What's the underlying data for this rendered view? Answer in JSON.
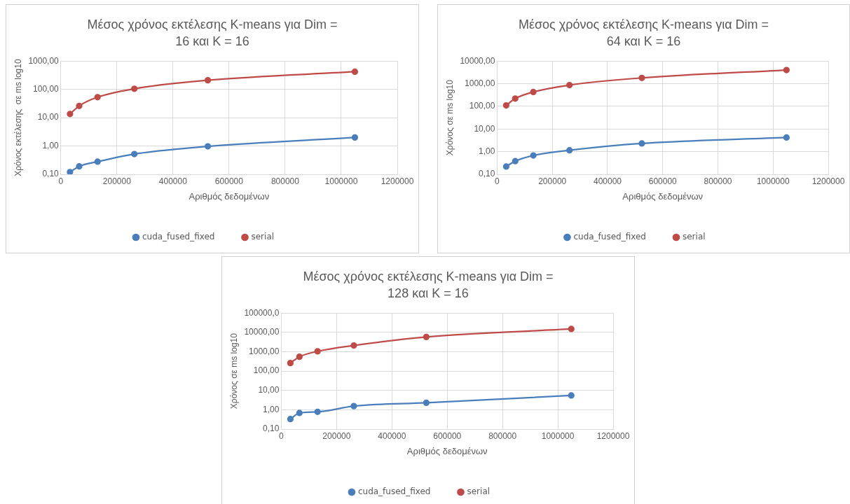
{
  "chart_data": [
    {
      "type": "line",
      "title": "Μέσος χρόνος εκτέλεσης K-means για Dim = 16 και K = 16",
      "xlabel": "Αριθμός δεδομένων",
      "ylabel": "Χρόνος εκτέλεσης  σε ms log10",
      "x": [
        32768,
        65536,
        131072,
        262144,
        524288,
        1048576
      ],
      "log": "y",
      "grid": true,
      "legend": "bottom",
      "marker": "circle",
      "line_style": "solid",
      "xlim": [
        0,
        1200000
      ],
      "xticks": [
        0,
        200000,
        400000,
        600000,
        800000,
        1000000,
        1200000
      ],
      "ylim": [
        0.1,
        1000
      ],
      "yticks": [
        {
          "value": 0.1,
          "label": "0,10"
        },
        {
          "value": 1,
          "label": "1,00"
        },
        {
          "value": 10,
          "label": "10,00"
        },
        {
          "value": 100,
          "label": "100,00"
        },
        {
          "value": 1000,
          "label": "1000,00"
        }
      ],
      "series": [
        {
          "name": "cuda_fused_fixed",
          "color": "#4a7ebb",
          "values": [
            0.12,
            0.19,
            0.28,
            0.52,
            0.97,
            2.0
          ]
        },
        {
          "name": "serial",
          "color": "#be4b48",
          "values": [
            13.5,
            26,
            53,
            105,
            210,
            420
          ]
        }
      ]
    },
    {
      "type": "line",
      "title": "Μέσος χρόνος εκτέλεσης K-means για Dim = 64 και K = 16",
      "xlabel": "Αριθμός δεδομένων",
      "ylabel": "Χρόνος σε ms log10",
      "x": [
        32768,
        65536,
        131072,
        262144,
        524288,
        1048576
      ],
      "log": "y",
      "grid": true,
      "legend": "bottom",
      "marker": "circle",
      "line_style": "solid",
      "xlim": [
        0,
        1200000
      ],
      "xticks": [
        0,
        200000,
        400000,
        600000,
        800000,
        1000000,
        1200000
      ],
      "ylim": [
        0.1,
        10000
      ],
      "yticks": [
        {
          "value": 0.1,
          "label": "0,10"
        },
        {
          "value": 1,
          "label": "1,00"
        },
        {
          "value": 10,
          "label": "10,00"
        },
        {
          "value": 100,
          "label": "100,00"
        },
        {
          "value": 1000,
          "label": "1000,00"
        },
        {
          "value": 10000,
          "label": "10000,00"
        }
      ],
      "series": [
        {
          "name": "cuda_fused_fixed",
          "color": "#4a7ebb",
          "values": [
            0.22,
            0.38,
            0.68,
            1.15,
            2.3,
            4.2
          ]
        },
        {
          "name": "serial",
          "color": "#be4b48",
          "values": [
            110,
            220,
            430,
            870,
            1800,
            4000
          ]
        }
      ]
    },
    {
      "type": "line",
      "title": "Μέσος χρόνος εκτέλεσης K-means για Dim = 128 και K = 16",
      "xlabel": "Αριθμός δεδομένων",
      "ylabel": "Χρόνος σε ms log10",
      "x": [
        32768,
        65536,
        131072,
        262144,
        524288,
        1048576
      ],
      "log": "y",
      "grid": true,
      "legend": "bottom",
      "marker": "circle",
      "line_style": "solid",
      "xlim": [
        0,
        1200000
      ],
      "xticks": [
        0,
        200000,
        400000,
        600000,
        800000,
        1000000,
        1200000
      ],
      "ylim": [
        0.1,
        100000
      ],
      "yticks": [
        {
          "value": 0.1,
          "label": "0,10"
        },
        {
          "value": 1,
          "label": "1,00"
        },
        {
          "value": 10,
          "label": "10,00"
        },
        {
          "value": 100,
          "label": "100,00"
        },
        {
          "value": 1000,
          "label": "1000,00"
        },
        {
          "value": 10000,
          "label": "10000,00"
        },
        {
          "value": 100000,
          "label": "100000,0"
        }
      ],
      "series": [
        {
          "name": "cuda_fused_fixed",
          "color": "#4a7ebb",
          "values": [
            0.33,
            0.68,
            0.78,
            1.55,
            2.3,
            5.5
          ]
        },
        {
          "name": "serial",
          "color": "#be4b48",
          "values": [
            260,
            550,
            1050,
            2100,
            5800,
            15000
          ]
        }
      ]
    }
  ]
}
